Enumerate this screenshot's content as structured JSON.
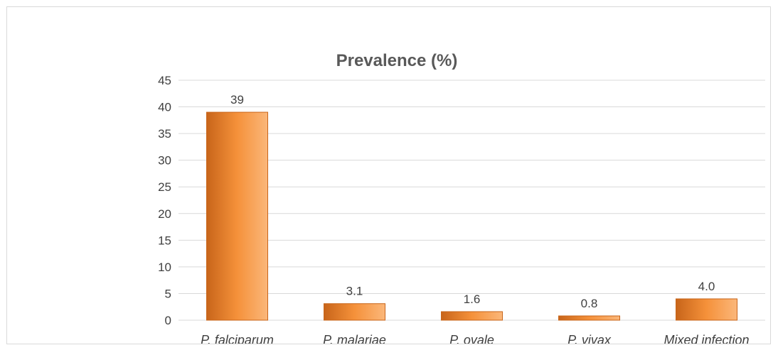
{
  "chart_data": {
    "type": "bar",
    "title": "Prevalence (%)",
    "xlabel": "",
    "ylabel": "",
    "categories": [
      "P. falciparum",
      "P. malariae",
      "P. ovale",
      "P. vivax",
      "Mixed infection"
    ],
    "values": [
      39,
      3.1,
      1.6,
      0.8,
      4.0
    ],
    "data_labels": [
      "39",
      "3.1",
      "1.6",
      "0.8",
      "4.0"
    ],
    "ylim": [
      0,
      45
    ],
    "yticks": [
      0,
      5,
      10,
      15,
      20,
      25,
      30,
      35,
      40,
      45
    ],
    "grid": true,
    "legend": "none",
    "bar_color": "#f5913a",
    "bar_highlight": "#fbb77a",
    "bar_shadow": "#c8651a",
    "gridline_color": "#d9d9d9"
  }
}
